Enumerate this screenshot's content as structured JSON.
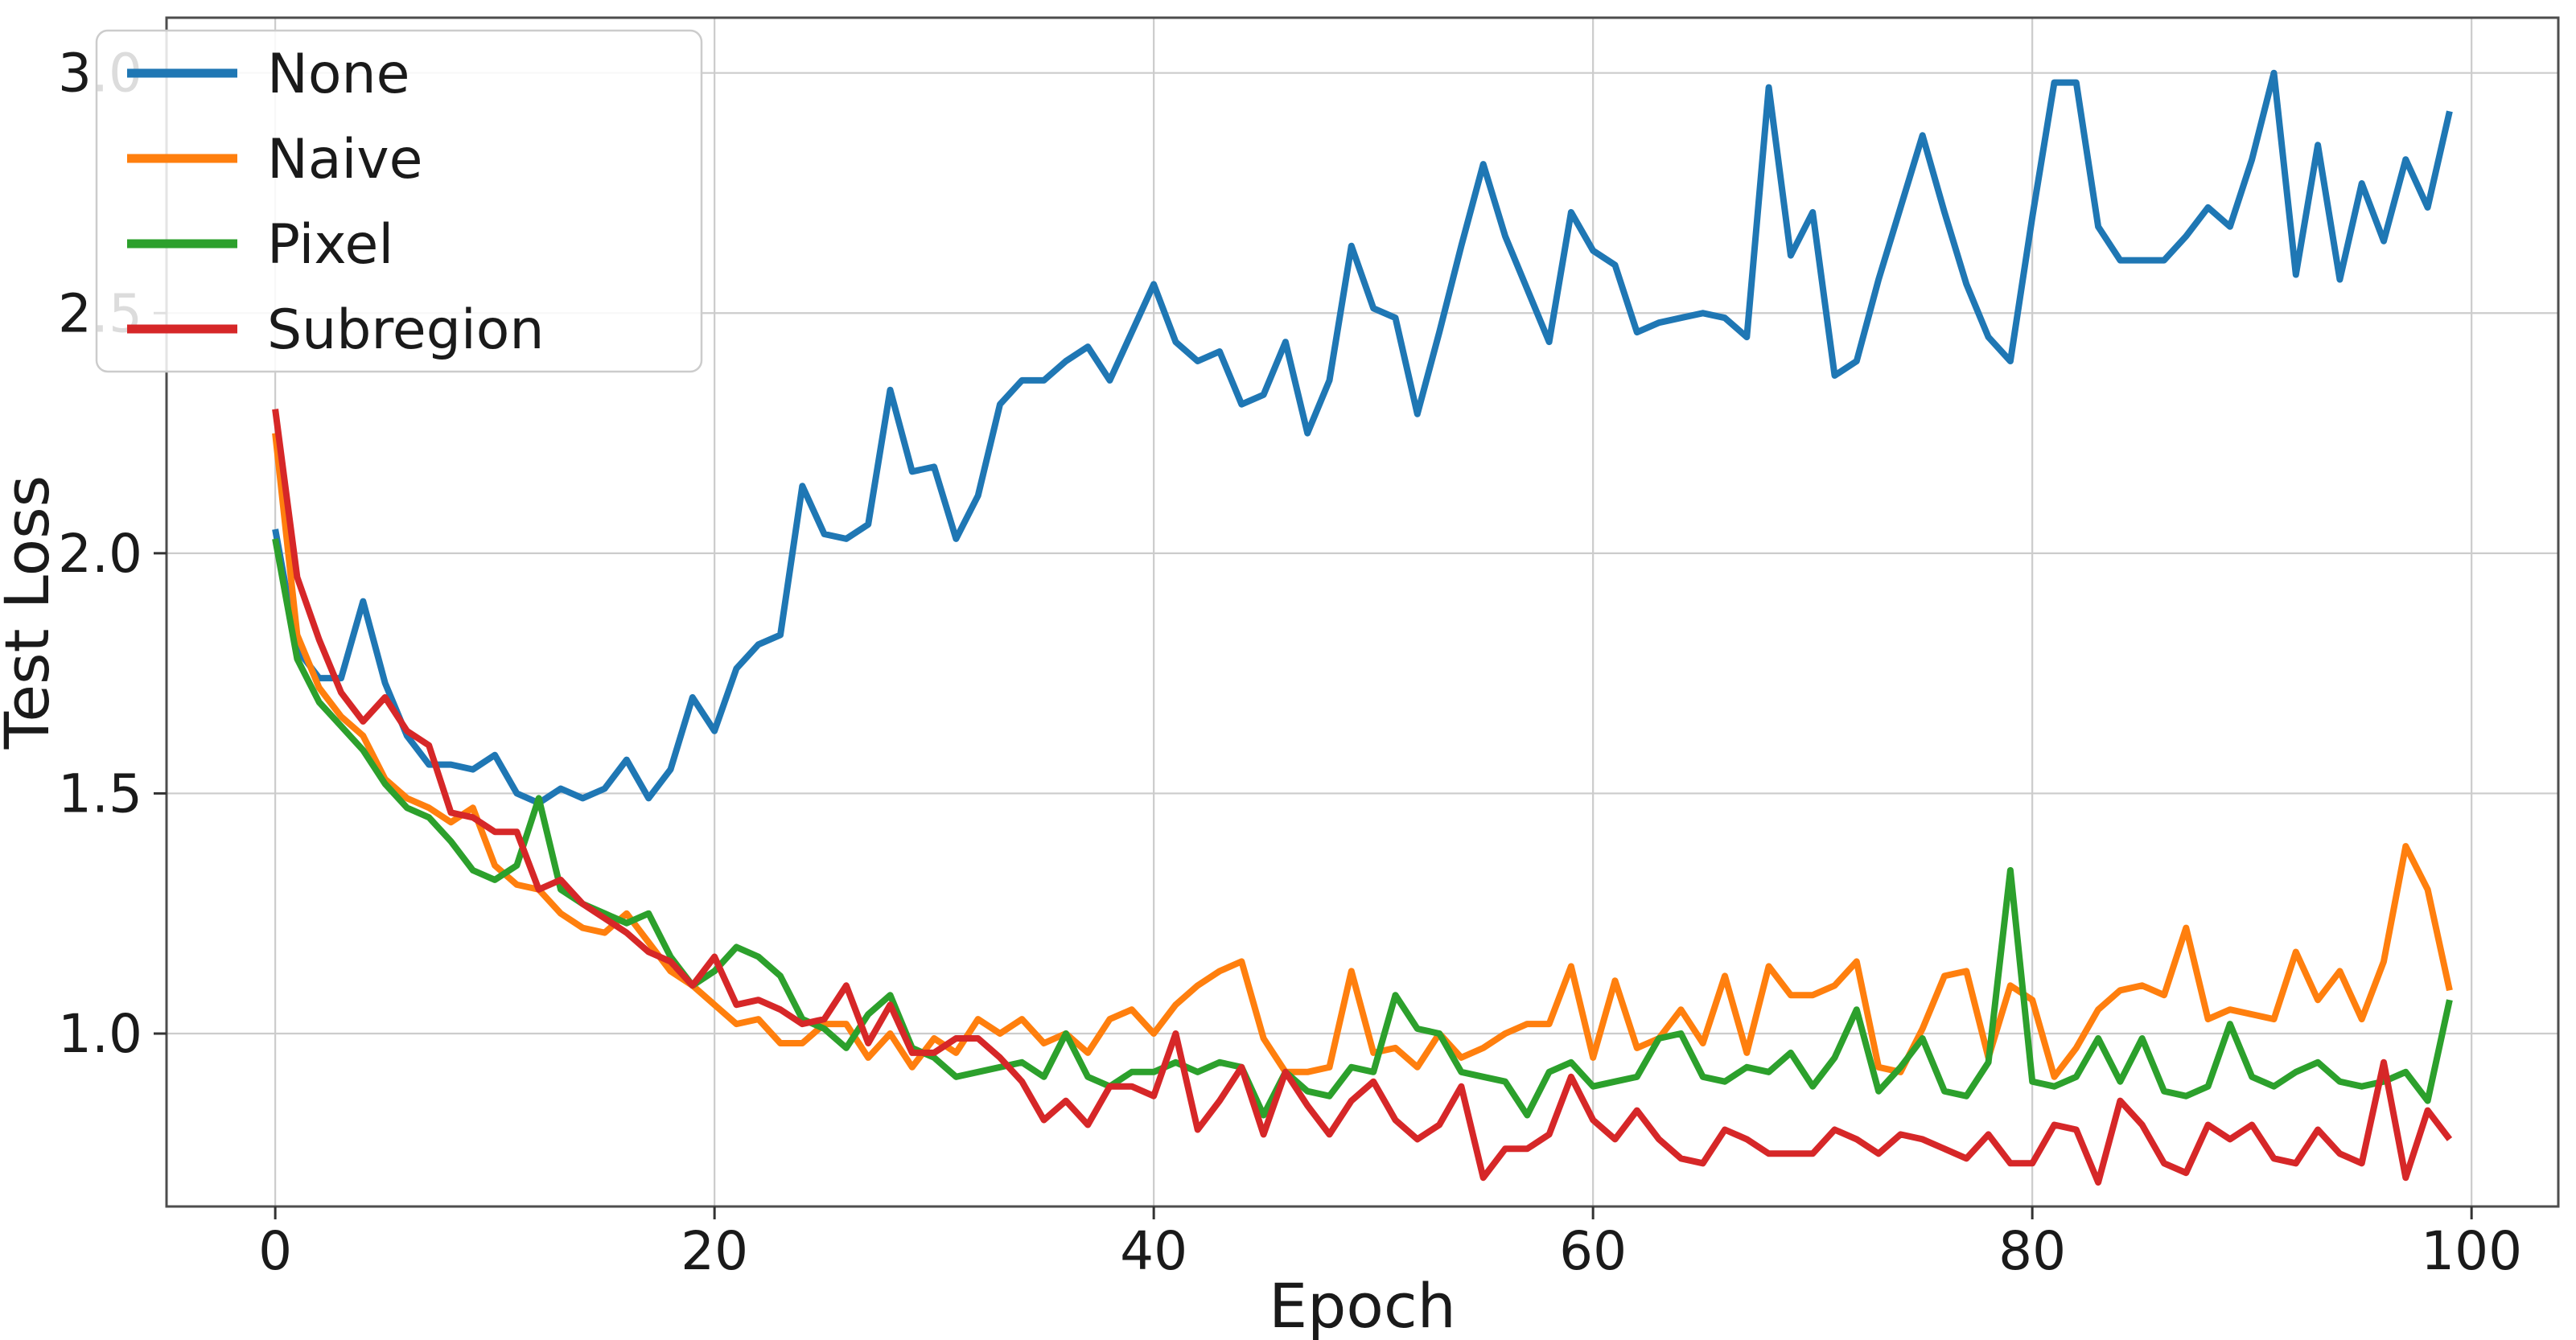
{
  "chart_data": {
    "type": "line",
    "title": "",
    "xlabel": "Epoch",
    "ylabel": "Test Loss",
    "xlim": [
      -4.95,
      103.95
    ],
    "ylim": [
      0.64,
      3.115
    ],
    "xticks": [
      0,
      20,
      40,
      60,
      80,
      100
    ],
    "yticks": [
      1.0,
      1.5,
      2.0,
      2.5,
      3.0
    ],
    "grid": true,
    "legend_position": "upper left",
    "x": [
      0,
      1,
      2,
      3,
      4,
      5,
      6,
      7,
      8,
      9,
      10,
      11,
      12,
      13,
      14,
      15,
      16,
      17,
      18,
      19,
      20,
      21,
      22,
      23,
      24,
      25,
      26,
      27,
      28,
      29,
      30,
      31,
      32,
      33,
      34,
      35,
      36,
      37,
      38,
      39,
      40,
      41,
      42,
      43,
      44,
      45,
      46,
      47,
      48,
      49,
      50,
      51,
      52,
      53,
      54,
      55,
      56,
      57,
      58,
      59,
      60,
      61,
      62,
      63,
      64,
      65,
      66,
      67,
      68,
      69,
      70,
      71,
      72,
      73,
      74,
      75,
      76,
      77,
      78,
      79,
      80,
      81,
      82,
      83,
      84,
      85,
      86,
      87,
      88,
      89,
      90,
      91,
      92,
      93,
      94,
      95,
      96,
      97,
      98,
      99
    ],
    "series": [
      {
        "name": "None",
        "color": "#1f77b4",
        "values": [
          2.05,
          1.8,
          1.74,
          1.74,
          1.9,
          1.73,
          1.62,
          1.56,
          1.56,
          1.55,
          1.58,
          1.5,
          1.48,
          1.51,
          1.49,
          1.51,
          1.57,
          1.49,
          1.55,
          1.7,
          1.63,
          1.76,
          1.81,
          1.83,
          2.14,
          2.04,
          2.03,
          2.06,
          2.34,
          2.17,
          2.18,
          2.03,
          2.12,
          2.31,
          2.36,
          2.36,
          2.4,
          2.43,
          2.36,
          2.46,
          2.56,
          2.44,
          2.4,
          2.42,
          2.31,
          2.33,
          2.44,
          2.25,
          2.36,
          2.64,
          2.51,
          2.49,
          2.29,
          2.46,
          2.64,
          2.81,
          2.66,
          2.55,
          2.44,
          2.71,
          2.63,
          2.6,
          2.46,
          2.48,
          2.49,
          2.5,
          2.49,
          2.45,
          2.97,
          2.62,
          2.71,
          2.37,
          2.4,
          2.57,
          2.72,
          2.87,
          2.71,
          2.56,
          2.45,
          2.4,
          2.7,
          2.98,
          2.98,
          2.68,
          2.61,
          2.61,
          2.61,
          2.66,
          2.72,
          2.68,
          2.82,
          3.0,
          2.58,
          2.85,
          2.57,
          2.77,
          2.65,
          2.82,
          2.72,
          2.92
        ]
      },
      {
        "name": "Naive",
        "color": "#ff7f0e",
        "values": [
          2.25,
          1.83,
          1.72,
          1.66,
          1.62,
          1.53,
          1.49,
          1.47,
          1.44,
          1.47,
          1.35,
          1.31,
          1.3,
          1.25,
          1.22,
          1.21,
          1.25,
          1.19,
          1.13,
          1.1,
          1.06,
          1.02,
          1.03,
          0.98,
          0.98,
          1.02,
          1.02,
          0.95,
          1.0,
          0.93,
          0.99,
          0.96,
          1.03,
          1.0,
          1.03,
          0.98,
          1.0,
          0.96,
          1.03,
          1.05,
          1.0,
          1.06,
          1.1,
          1.13,
          1.15,
          0.99,
          0.92,
          0.92,
          0.93,
          1.13,
          0.96,
          0.97,
          0.93,
          1.0,
          0.95,
          0.97,
          1.0,
          1.02,
          1.02,
          1.14,
          0.95,
          1.11,
          0.97,
          0.99,
          1.05,
          0.98,
          1.12,
          0.96,
          1.14,
          1.08,
          1.08,
          1.1,
          1.15,
          0.93,
          0.92,
          1.01,
          1.12,
          1.13,
          0.95,
          1.1,
          1.07,
          0.91,
          0.97,
          1.05,
          1.09,
          1.1,
          1.08,
          1.22,
          1.03,
          1.05,
          1.04,
          1.03,
          1.17,
          1.07,
          1.13,
          1.03,
          1.15,
          1.39,
          1.3,
          1.09
        ]
      },
      {
        "name": "Pixel",
        "color": "#2ca02c",
        "values": [
          2.03,
          1.78,
          1.69,
          1.64,
          1.59,
          1.52,
          1.47,
          1.45,
          1.4,
          1.34,
          1.32,
          1.35,
          1.49,
          1.3,
          1.27,
          1.25,
          1.23,
          1.25,
          1.16,
          1.1,
          1.13,
          1.18,
          1.16,
          1.12,
          1.03,
          1.01,
          0.97,
          1.04,
          1.08,
          0.97,
          0.95,
          0.91,
          0.92,
          0.93,
          0.94,
          0.91,
          1.0,
          0.91,
          0.89,
          0.92,
          0.92,
          0.94,
          0.92,
          0.94,
          0.93,
          0.83,
          0.92,
          0.88,
          0.87,
          0.93,
          0.92,
          1.08,
          1.01,
          1.0,
          0.92,
          0.91,
          0.9,
          0.83,
          0.92,
          0.94,
          0.89,
          0.9,
          0.91,
          0.99,
          1.0,
          0.91,
          0.9,
          0.93,
          0.92,
          0.96,
          0.89,
          0.95,
          1.05,
          0.88,
          0.93,
          0.99,
          0.88,
          0.87,
          0.94,
          1.34,
          0.9,
          0.89,
          0.91,
          0.99,
          0.9,
          0.99,
          0.88,
          0.87,
          0.89,
          1.02,
          0.91,
          0.89,
          0.92,
          0.94,
          0.9,
          0.89,
          0.9,
          0.92,
          0.86,
          1.07
        ]
      },
      {
        "name": "Subregion",
        "color": "#d62728",
        "values": [
          2.3,
          1.95,
          1.82,
          1.71,
          1.65,
          1.7,
          1.63,
          1.6,
          1.46,
          1.45,
          1.42,
          1.42,
          1.3,
          1.32,
          1.27,
          1.24,
          1.21,
          1.17,
          1.15,
          1.1,
          1.16,
          1.06,
          1.07,
          1.05,
          1.02,
          1.03,
          1.1,
          0.98,
          1.06,
          0.96,
          0.96,
          0.99,
          0.99,
          0.95,
          0.9,
          0.82,
          0.86,
          0.81,
          0.89,
          0.89,
          0.87,
          1.0,
          0.8,
          0.86,
          0.93,
          0.79,
          0.92,
          0.85,
          0.79,
          0.86,
          0.9,
          0.82,
          0.78,
          0.81,
          0.89,
          0.7,
          0.76,
          0.76,
          0.79,
          0.91,
          0.82,
          0.78,
          0.84,
          0.78,
          0.74,
          0.73,
          0.8,
          0.78,
          0.75,
          0.75,
          0.75,
          0.8,
          0.78,
          0.75,
          0.79,
          0.78,
          0.76,
          0.74,
          0.79,
          0.73,
          0.73,
          0.81,
          0.8,
          0.69,
          0.86,
          0.81,
          0.73,
          0.71,
          0.81,
          0.78,
          0.81,
          0.74,
          0.73,
          0.8,
          0.75,
          0.73,
          0.94,
          0.7,
          0.84,
          0.78
        ]
      }
    ]
  },
  "style": {
    "background_color": "#ffffff",
    "grid_color": "#cccccc",
    "spine_color": "#4d4d4d",
    "tick_color": "#333333",
    "text_color": "#1a1a1a",
    "legend_border_color": "#cccccc",
    "legend_fill_color": "#ffffff"
  }
}
